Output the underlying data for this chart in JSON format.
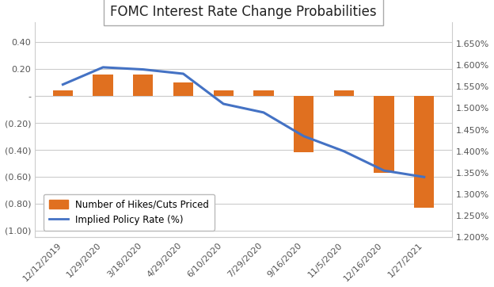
{
  "title": "FOMC Interest Rate Change Probabilities",
  "categories": [
    "12/12/2019",
    "1/29/2020",
    "3/18/2020",
    "4/29/2020",
    "6/10/2020",
    "7/29/2020",
    "9/16/2020",
    "11/5/2020",
    "12/16/2020",
    "1/27/2021"
  ],
  "bar_values": [
    0.04,
    0.16,
    0.16,
    0.1,
    0.04,
    0.04,
    -0.42,
    0.04,
    -0.57,
    -0.83
  ],
  "line_values": [
    1.555,
    1.595,
    1.59,
    1.58,
    1.51,
    1.49,
    1.435,
    1.4,
    1.355,
    1.34
  ],
  "bar_color": "#E07020",
  "line_color": "#4472C4",
  "left_ylim": [
    -1.05,
    0.55
  ],
  "left_yticks": [
    -1.0,
    -0.8,
    -0.6,
    -0.4,
    -0.2,
    0.0,
    0.2,
    0.4
  ],
  "left_yticklabels": [
    "(1.00)",
    "(0.80)",
    "(0.60)",
    "(0.40)",
    "(0.20)",
    "-",
    "0.20",
    "0.40"
  ],
  "right_ylim": [
    1.2,
    1.7
  ],
  "right_yticks": [
    1.2,
    1.25,
    1.3,
    1.35,
    1.4,
    1.45,
    1.5,
    1.55,
    1.6,
    1.65
  ],
  "right_yticklabels": [
    "1.200%",
    "1.250%",
    "1.300%",
    "1.350%",
    "1.400%",
    "1.450%",
    "1.500%",
    "1.550%",
    "1.600%",
    "1.650%"
  ],
  "legend_bar_label": "Number of Hikes/Cuts Priced",
  "legend_line_label": "Implied Policy Rate (%)",
  "background_color": "#FFFFFF",
  "grid_color": "#CCCCCC",
  "title_fontsize": 12,
  "tick_fontsize": 8,
  "legend_fontsize": 8.5,
  "bar_width": 0.5
}
